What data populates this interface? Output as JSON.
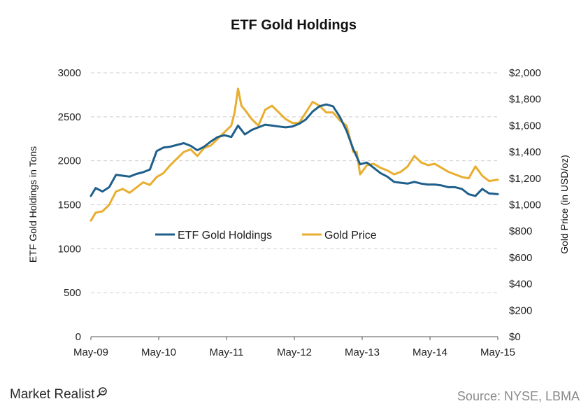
{
  "chart_data": {
    "type": "line",
    "title": "ETF Gold Holdings",
    "xlabel": "",
    "ylabel_left": "ETF Gold Holdings in Tons",
    "ylabel_right": "Gold Price (in USD/oz)",
    "x_ticks": [
      "May-09",
      "May-10",
      "May-11",
      "May-12",
      "May-13",
      "May-14",
      "May-15"
    ],
    "y_left": {
      "min": 0,
      "max": 3000,
      "ticks": [
        "0",
        "500",
        "1000",
        "1500",
        "2000",
        "2500",
        "3000"
      ],
      "tick_values": [
        0,
        500,
        1000,
        1500,
        2000,
        2500,
        3000
      ]
    },
    "y_right": {
      "min": 0,
      "max": 2000,
      "ticks": [
        "$0",
        "$200",
        "$400",
        "$600",
        "$800",
        "$1,000",
        "$1,200",
        "$1,400",
        "$1,600",
        "$1,800",
        "$2,000"
      ],
      "tick_values": [
        0,
        200,
        400,
        600,
        800,
        1000,
        1200,
        1400,
        1600,
        1800,
        2000
      ]
    },
    "grid": "horizontal-dashed",
    "legend_position": "center",
    "series": [
      {
        "name": "ETF Gold Holdings",
        "axis": "left",
        "color": "#1f5f8b",
        "x": [
          2009.33,
          2009.4,
          2009.5,
          2009.6,
          2009.7,
          2009.8,
          2009.9,
          2010.0,
          2010.1,
          2010.2,
          2010.3,
          2010.4,
          2010.5,
          2010.6,
          2010.7,
          2010.8,
          2010.9,
          2011.0,
          2011.1,
          2011.2,
          2011.3,
          2011.4,
          2011.5,
          2011.6,
          2011.7,
          2011.8,
          2011.9,
          2012.0,
          2012.1,
          2012.2,
          2012.3,
          2012.4,
          2012.5,
          2012.6,
          2012.7,
          2012.8,
          2012.9,
          2013.0,
          2013.1,
          2013.2,
          2013.3,
          2013.4,
          2013.5,
          2013.6,
          2013.7,
          2013.8,
          2013.9,
          2014.0,
          2014.1,
          2014.2,
          2014.3,
          2014.4,
          2014.5,
          2014.6,
          2014.7,
          2014.8,
          2014.9,
          2015.0,
          2015.1,
          2015.2,
          2015.33
        ],
        "values": [
          1600,
          1690,
          1650,
          1700,
          1840,
          1830,
          1820,
          1850,
          1870,
          1900,
          2110,
          2150,
          2160,
          2180,
          2200,
          2170,
          2120,
          2160,
          2220,
          2270,
          2290,
          2270,
          2400,
          2300,
          2350,
          2380,
          2410,
          2400,
          2390,
          2380,
          2390,
          2420,
          2470,
          2560,
          2620,
          2640,
          2620,
          2500,
          2340,
          2130,
          1960,
          1980,
          1920,
          1860,
          1820,
          1760,
          1750,
          1740,
          1760,
          1740,
          1730,
          1730,
          1720,
          1700,
          1700,
          1680,
          1620,
          1600,
          1680,
          1630,
          1620
        ]
      },
      {
        "name": "Gold Price",
        "axis": "right",
        "color": "#e8ae2f",
        "x": [
          2009.33,
          2009.4,
          2009.5,
          2009.6,
          2009.7,
          2009.8,
          2009.9,
          2010.0,
          2010.1,
          2010.2,
          2010.3,
          2010.4,
          2010.5,
          2010.6,
          2010.7,
          2010.8,
          2010.9,
          2011.0,
          2011.1,
          2011.2,
          2011.3,
          2011.4,
          2011.45,
          2011.5,
          2011.55,
          2011.6,
          2011.7,
          2011.8,
          2011.9,
          2012.0,
          2012.1,
          2012.2,
          2012.3,
          2012.4,
          2012.5,
          2012.6,
          2012.7,
          2012.8,
          2012.9,
          2013.0,
          2013.1,
          2013.2,
          2013.25,
          2013.3,
          2013.4,
          2013.5,
          2013.6,
          2013.7,
          2013.8,
          2013.9,
          2014.0,
          2014.1,
          2014.2,
          2014.3,
          2014.4,
          2014.5,
          2014.6,
          2014.7,
          2014.8,
          2014.9,
          2015.0,
          2015.1,
          2015.2,
          2015.33
        ],
        "values": [
          880,
          940,
          950,
          1000,
          1100,
          1120,
          1090,
          1130,
          1170,
          1150,
          1210,
          1240,
          1300,
          1350,
          1400,
          1420,
          1370,
          1430,
          1450,
          1500,
          1550,
          1600,
          1700,
          1880,
          1750,
          1720,
          1650,
          1600,
          1720,
          1750,
          1700,
          1650,
          1620,
          1620,
          1700,
          1780,
          1750,
          1700,
          1700,
          1640,
          1600,
          1400,
          1400,
          1230,
          1300,
          1310,
          1280,
          1260,
          1230,
          1250,
          1290,
          1370,
          1320,
          1300,
          1310,
          1280,
          1250,
          1230,
          1210,
          1200,
          1290,
          1220,
          1180,
          1190
        ]
      }
    ]
  },
  "branding": {
    "logo_text": "Market Realist",
    "logo_icon": "magnifier-icon"
  },
  "source_note": "Source: NYSE, LBMA"
}
